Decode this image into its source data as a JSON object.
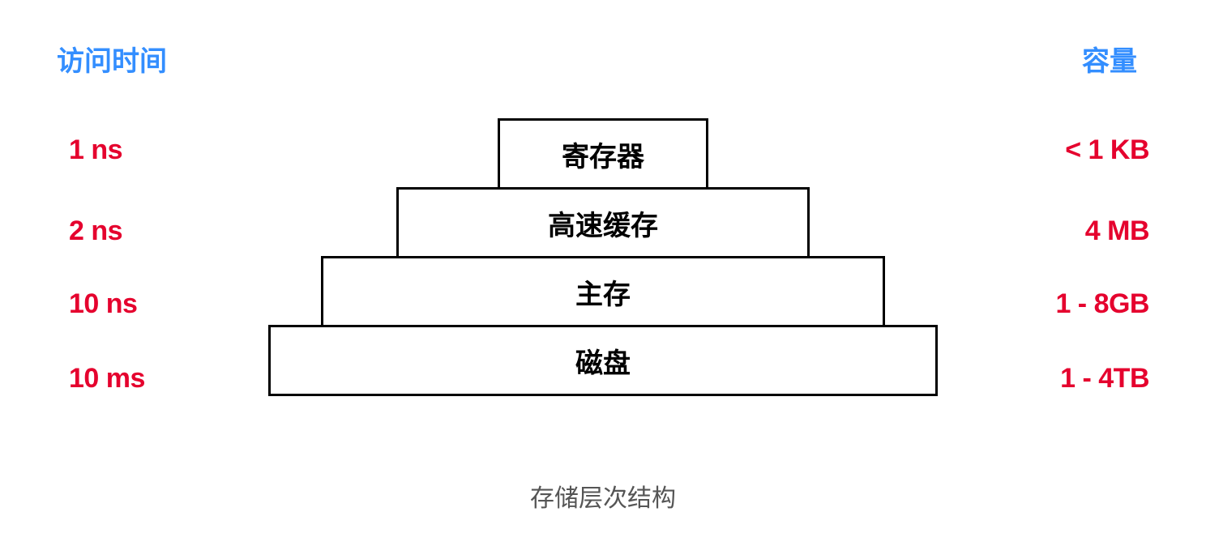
{
  "diagram": {
    "type": "pyramid",
    "title_left": "访问时间",
    "title_right": "容量",
    "caption": "存储层次结构",
    "background_color": "#ffffff",
    "border_color": "#000000",
    "border_width": 3,
    "header_color": "#338eff",
    "metric_color": "#e5022e",
    "tier_label_color": "#000000",
    "caption_color": "#555555",
    "header_fontsize": 34,
    "metric_fontsize": 34,
    "tier_fontsize": 34,
    "caption_fontsize": 30,
    "tier_height": 88,
    "tier_widths": [
      260,
      510,
      696,
      826
    ],
    "tiers": [
      {
        "label": "寄存器",
        "access_time": "1 ns",
        "capacity": "< 1 KB"
      },
      {
        "label": "高速缓存",
        "access_time": "2 ns",
        "capacity": "4 MB"
      },
      {
        "label": "主存",
        "access_time": "10 ns",
        "capacity": "1 - 8GB"
      },
      {
        "label": "磁盘",
        "access_time": "10 ms",
        "capacity": "1 - 4TB"
      }
    ]
  }
}
